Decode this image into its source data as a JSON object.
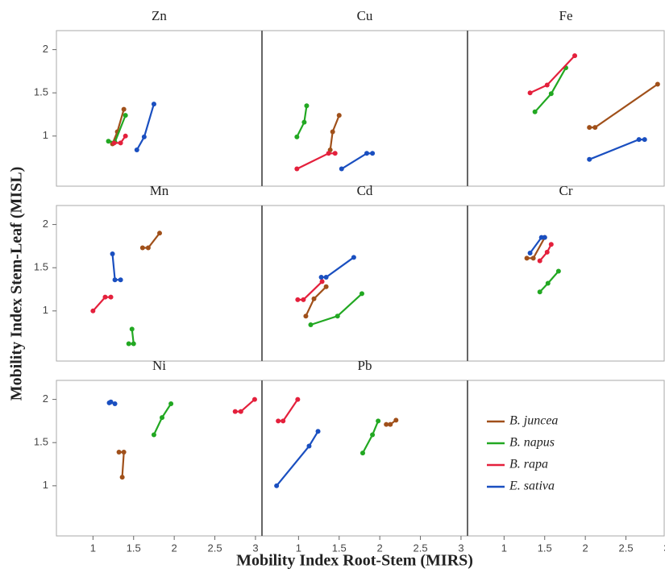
{
  "chart_data": {
    "type": "line",
    "xlabel": "Mobility Index Root-Stem (MIRS)",
    "ylabel": "Mobility Index Stem-Leaf (MISL)",
    "xlim": [
      0.55,
      3.08
    ],
    "ylim": [
      0.42,
      2.22
    ],
    "xticks": [
      1,
      1.5,
      2,
      2.5,
      3
    ],
    "yticks": [
      1,
      1.5,
      2
    ],
    "series": [
      {
        "name": "B. juncea",
        "color": "#a0501a"
      },
      {
        "name": "B. napus",
        "color": "#22a822"
      },
      {
        "name": "B. rapa",
        "color": "#e4203c"
      },
      {
        "name": "E. sativa",
        "color": "#1a4fc0"
      }
    ],
    "panels": [
      {
        "title": "Zn",
        "lines": [
          {
            "x": [
              1.24,
              1.3,
              1.38
            ],
            "values": [
              0.91,
              1.05,
              1.31
            ]
          },
          {
            "x": [
              1.19,
              1.27,
              1.4
            ],
            "values": [
              0.94,
              0.93,
              1.24
            ]
          },
          {
            "x": [
              1.26,
              1.34,
              1.4
            ],
            "values": [
              0.92,
              0.92,
              1.0
            ]
          },
          {
            "x": [
              1.54,
              1.63,
              1.75
            ],
            "values": [
              0.84,
              0.99,
              1.37
            ]
          }
        ]
      },
      {
        "title": "Cu",
        "lines": [
          {
            "x": [
              1.39,
              1.42,
              1.5
            ],
            "values": [
              0.84,
              1.05,
              1.24
            ]
          },
          {
            "x": [
              0.98,
              1.07,
              1.1
            ],
            "values": [
              0.99,
              1.16,
              1.35
            ]
          },
          {
            "x": [
              0.98,
              1.37,
              1.45
            ],
            "values": [
              0.62,
              0.8,
              0.8
            ]
          },
          {
            "x": [
              1.53,
              1.84,
              1.91
            ],
            "values": [
              0.62,
              0.8,
              0.8
            ]
          }
        ]
      },
      {
        "title": "Fe",
        "lines": [
          {
            "x": [
              2.05,
              2.12,
              2.89
            ],
            "values": [
              1.1,
              1.1,
              1.6
            ]
          },
          {
            "x": [
              1.38,
              1.58,
              1.76
            ],
            "values": [
              1.28,
              1.49,
              1.79
            ]
          },
          {
            "x": [
              1.32,
              1.53,
              1.87
            ],
            "values": [
              1.5,
              1.59,
              1.93
            ]
          },
          {
            "x": [
              2.05,
              2.66,
              2.73
            ],
            "values": [
              0.73,
              0.96,
              0.96
            ]
          }
        ]
      },
      {
        "title": "Mn",
        "lines": [
          {
            "x": [
              1.61,
              1.68,
              1.82
            ],
            "values": [
              1.73,
              1.73,
              1.9
            ]
          },
          {
            "x": [
              1.44,
              1.5,
              1.48
            ],
            "values": [
              0.62,
              0.62,
              0.79
            ]
          },
          {
            "x": [
              1.0,
              1.15,
              1.22
            ],
            "values": [
              1.0,
              1.16,
              1.16
            ]
          },
          {
            "x": [
              1.24,
              1.27,
              1.34
            ],
            "values": [
              1.66,
              1.36,
              1.36
            ]
          }
        ]
      },
      {
        "title": "Cd",
        "lines": [
          {
            "x": [
              1.09,
              1.19,
              1.34
            ],
            "values": [
              0.94,
              1.14,
              1.28
            ]
          },
          {
            "x": [
              1.15,
              1.48,
              1.78
            ],
            "values": [
              0.84,
              0.94,
              1.2
            ]
          },
          {
            "x": [
              0.99,
              1.06,
              1.29
            ],
            "values": [
              1.13,
              1.13,
              1.34
            ]
          },
          {
            "x": [
              1.28,
              1.34,
              1.68
            ],
            "values": [
              1.39,
              1.39,
              1.62
            ]
          }
        ]
      },
      {
        "title": "Cr",
        "lines": [
          {
            "x": [
              1.28,
              1.36,
              1.5
            ],
            "values": [
              1.61,
              1.61,
              1.85
            ]
          },
          {
            "x": [
              1.44,
              1.54,
              1.67
            ],
            "values": [
              1.22,
              1.32,
              1.46
            ]
          },
          {
            "x": [
              1.44,
              1.53,
              1.58
            ],
            "values": [
              1.58,
              1.68,
              1.77
            ]
          },
          {
            "x": [
              1.32,
              1.46,
              1.5
            ],
            "values": [
              1.67,
              1.85,
              1.85
            ]
          }
        ]
      },
      {
        "title": "Ni",
        "lines": [
          {
            "x": [
              1.32,
              1.38,
              1.36
            ],
            "values": [
              1.39,
              1.39,
              1.1
            ]
          },
          {
            "x": [
              1.75,
              1.85,
              1.96
            ],
            "values": [
              1.59,
              1.79,
              1.95
            ]
          },
          {
            "x": [
              2.75,
              2.82,
              2.99
            ],
            "values": [
              1.86,
              1.86,
              2.0
            ]
          },
          {
            "x": [
              1.2,
              1.22,
              1.27
            ],
            "values": [
              1.96,
              1.97,
              1.95
            ]
          }
        ]
      },
      {
        "title": "Pb",
        "lines": [
          {
            "x": [
              2.08,
              2.13,
              2.2
            ],
            "values": [
              1.71,
              1.71,
              1.76
            ]
          },
          {
            "x": [
              1.79,
              1.91,
              1.98
            ],
            "values": [
              1.38,
              1.59,
              1.75
            ]
          },
          {
            "x": [
              0.75,
              0.81,
              0.99
            ],
            "values": [
              1.75,
              1.75,
              2.0
            ]
          },
          {
            "x": [
              0.73,
              1.13,
              1.24
            ],
            "values": [
              1.0,
              1.46,
              1.63
            ]
          }
        ]
      }
    ]
  }
}
